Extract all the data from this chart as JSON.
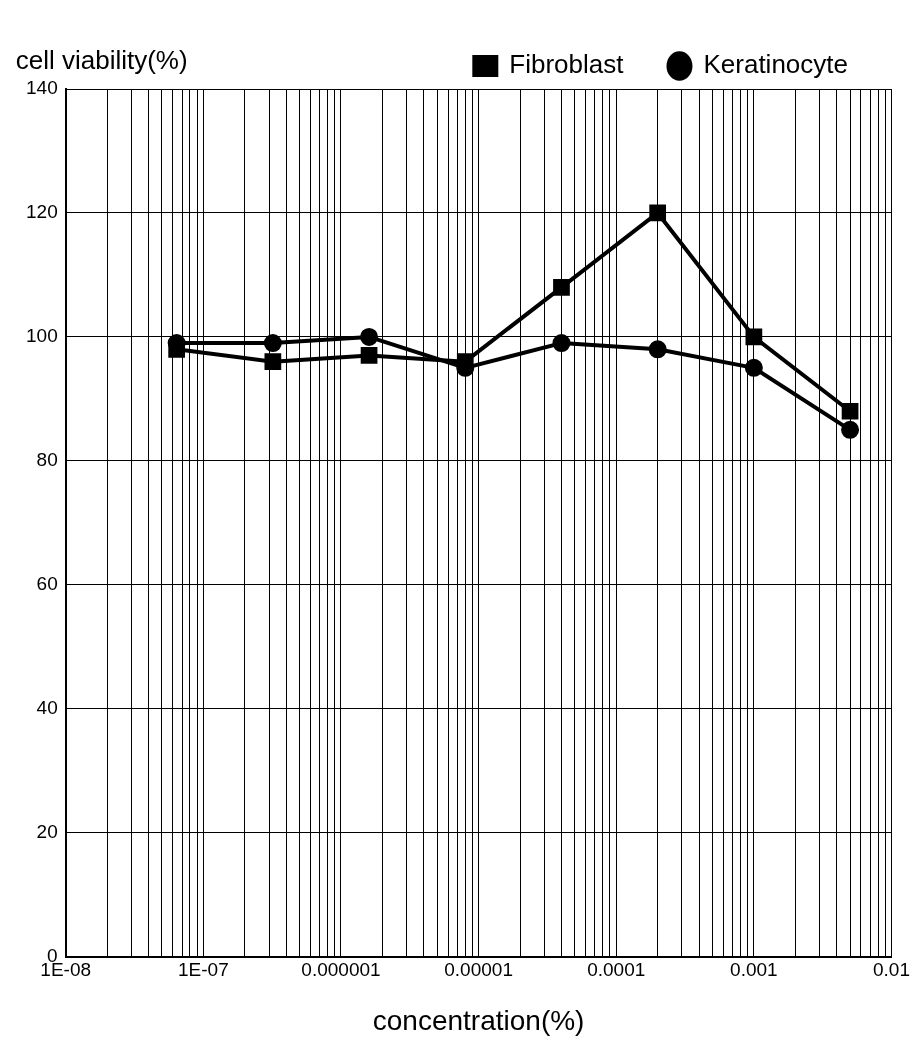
{
  "chart_data": {
    "type": "line",
    "xlabel": "concentration(%)",
    "ylabel": "cell viability(%)",
    "x": [
      6.4e-08,
      3.2e-07,
      1.6e-06,
      8e-06,
      4e-05,
      0.0002,
      0.001,
      0.005
    ],
    "series": [
      {
        "name": "Fibroblast",
        "color": "#000000",
        "marker": "square",
        "values": [
          98,
          96,
          97,
          96,
          108,
          120,
          100,
          88
        ]
      },
      {
        "name": "Keratinocyte",
        "color": "#000000",
        "marker": "circle",
        "values": [
          99,
          99,
          100,
          95,
          99,
          98,
          95,
          85
        ]
      }
    ],
    "log": "x",
    "xlim": [
      1e-08,
      0.01
    ],
    "xticks": [
      {
        "value": 1e-08,
        "label": "1E-08"
      },
      {
        "value": 2e-08,
        "label": null
      },
      {
        "value": 3e-08,
        "label": null
      },
      {
        "value": 4e-08,
        "label": null
      },
      {
        "value": 5e-08,
        "label": null
      },
      {
        "value": 6e-08,
        "label": null
      },
      {
        "value": 7e-08,
        "label": null
      },
      {
        "value": 8e-08,
        "label": null
      },
      {
        "value": 9e-08,
        "label": null
      },
      {
        "value": 1e-07,
        "label": "1E-07"
      },
      {
        "value": 2e-07,
        "label": null
      },
      {
        "value": 3e-07,
        "label": null
      },
      {
        "value": 4e-07,
        "label": null
      },
      {
        "value": 5e-07,
        "label": null
      },
      {
        "value": 6e-07,
        "label": null
      },
      {
        "value": 7e-07,
        "label": null
      },
      {
        "value": 8e-07,
        "label": null
      },
      {
        "value": 9e-07,
        "label": null
      },
      {
        "value": 1e-06,
        "label": "0.000001"
      },
      {
        "value": 2e-06,
        "label": null
      },
      {
        "value": 3e-06,
        "label": null
      },
      {
        "value": 4e-06,
        "label": null
      },
      {
        "value": 5e-06,
        "label": null
      },
      {
        "value": 6e-06,
        "label": null
      },
      {
        "value": 7e-06,
        "label": null
      },
      {
        "value": 8e-06,
        "label": null
      },
      {
        "value": 9e-06,
        "label": null
      },
      {
        "value": 1e-05,
        "label": "0.00001"
      },
      {
        "value": 2e-05,
        "label": null
      },
      {
        "value": 3e-05,
        "label": null
      },
      {
        "value": 4e-05,
        "label": null
      },
      {
        "value": 5e-05,
        "label": null
      },
      {
        "value": 6e-05,
        "label": null
      },
      {
        "value": 7e-05,
        "label": null
      },
      {
        "value": 8e-05,
        "label": null
      },
      {
        "value": 9e-05,
        "label": null
      },
      {
        "value": 0.0001,
        "label": "0.0001"
      },
      {
        "value": 0.0002,
        "label": null
      },
      {
        "value": 0.0003,
        "label": null
      },
      {
        "value": 0.0004,
        "label": null
      },
      {
        "value": 0.0005,
        "label": null
      },
      {
        "value": 0.0006,
        "label": null
      },
      {
        "value": 0.0007,
        "label": null
      },
      {
        "value": 0.0008,
        "label": null
      },
      {
        "value": 0.0009,
        "label": null
      },
      {
        "value": 0.001,
        "label": "0.001"
      },
      {
        "value": 0.002,
        "label": null
      },
      {
        "value": 0.003,
        "label": null
      },
      {
        "value": 0.004,
        "label": null
      },
      {
        "value": 0.005,
        "label": null
      },
      {
        "value": 0.006,
        "label": null
      },
      {
        "value": 0.007,
        "label": null
      },
      {
        "value": 0.008,
        "label": null
      },
      {
        "value": 0.009,
        "label": null
      },
      {
        "value": 0.01,
        "label": "0.01"
      }
    ],
    "ylim": [
      0,
      140
    ],
    "yticks": [
      0,
      20,
      40,
      60,
      80,
      100,
      120,
      140
    ],
    "grid": true,
    "legend": "top right",
    "line_style": "solid"
  }
}
